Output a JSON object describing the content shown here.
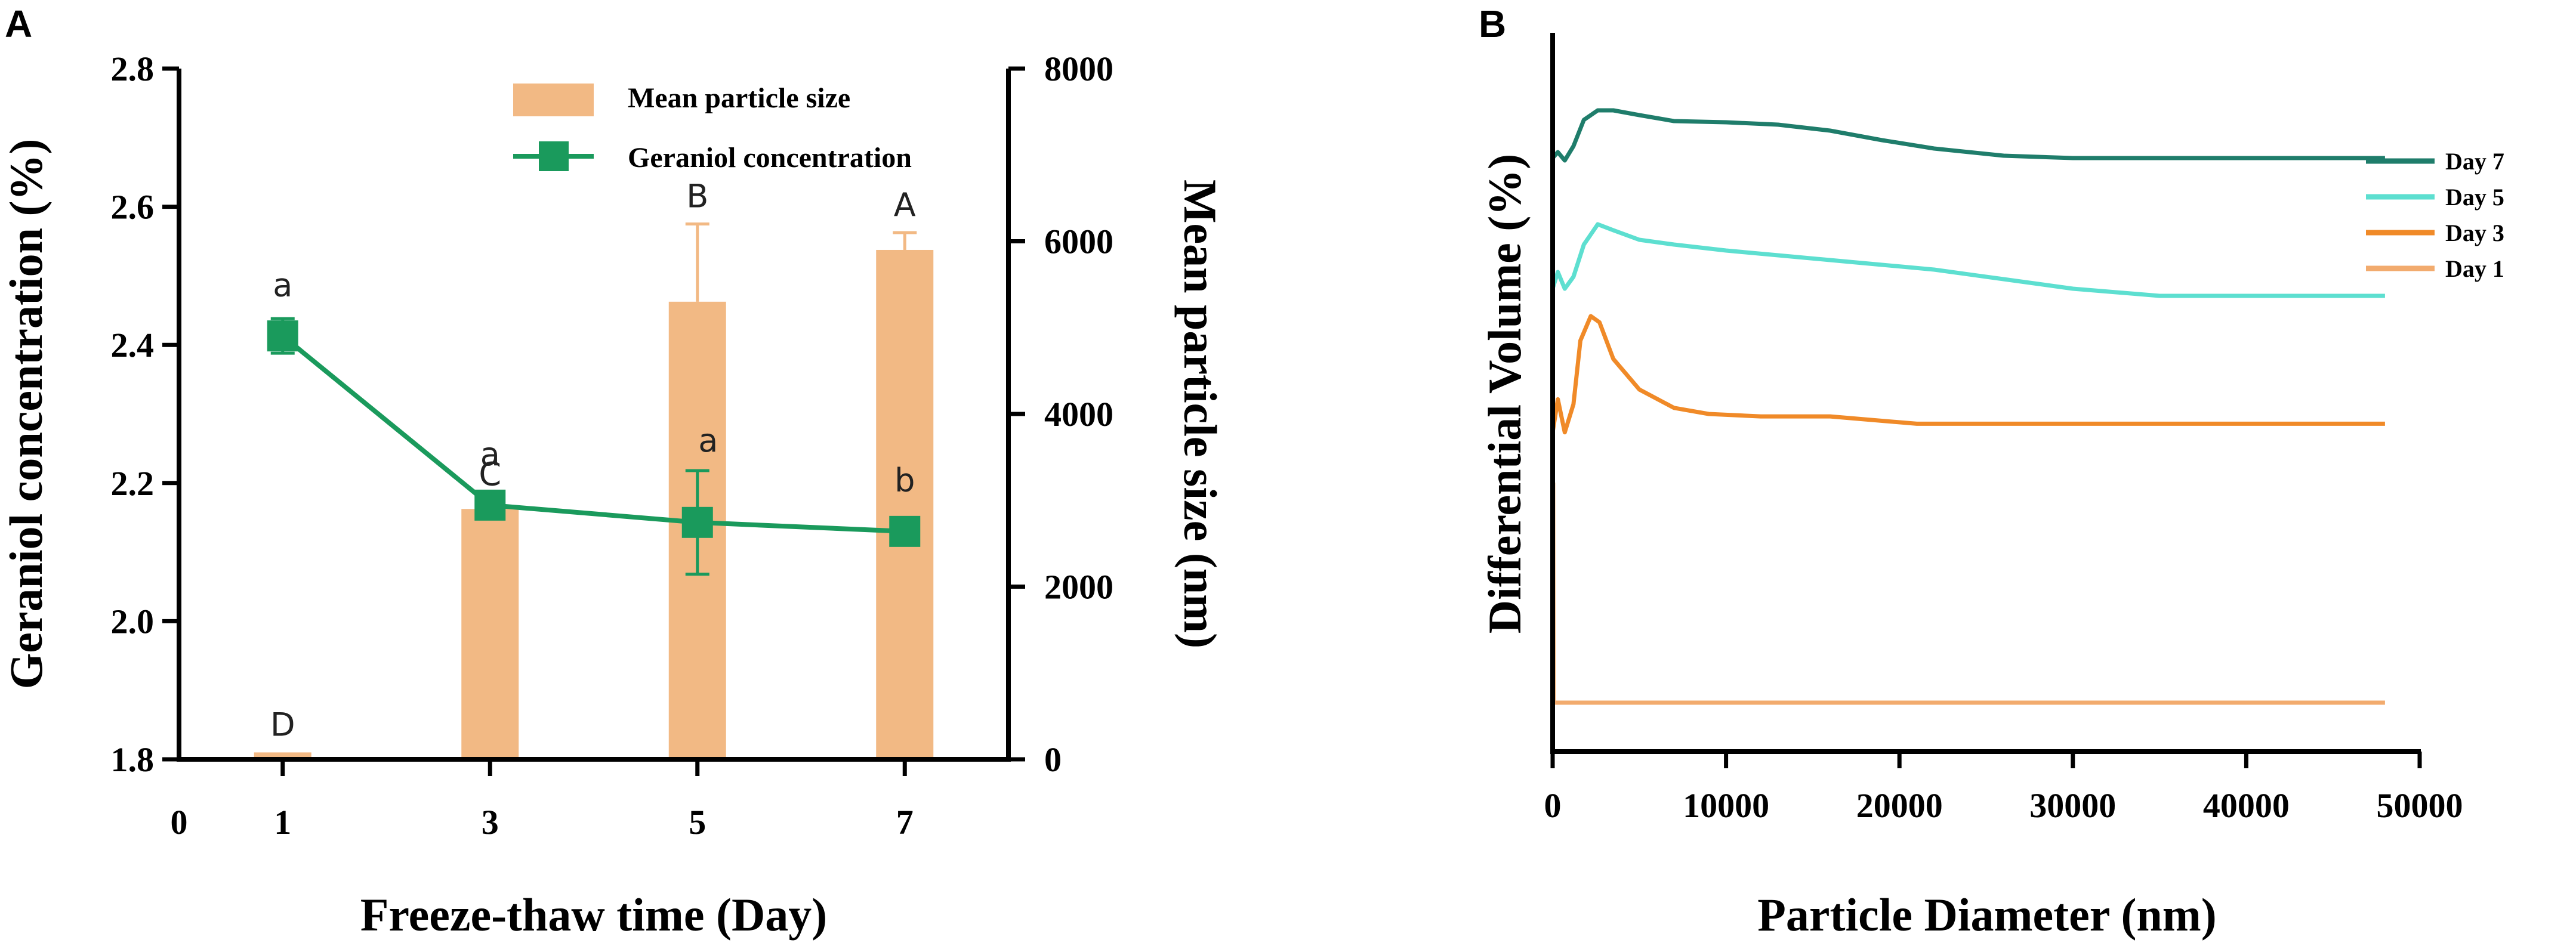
{
  "panels": {
    "a": "A",
    "b": "B"
  },
  "chart_data": [
    {
      "type": "bar",
      "panel": "A",
      "xlabel": "Freeze-thaw time (Day)",
      "ylabel_left": "Geraniol concentration (%)",
      "ylabel_right": "Mean particle size (nm)",
      "x_ticks": [
        "0",
        "1",
        "3",
        "5",
        "7"
      ],
      "x_range": [
        0,
        8
      ],
      "y_left_ticks": [
        "1.8",
        "2.0",
        "2.2",
        "2.4",
        "2.6",
        "2.8"
      ],
      "y_left_range": [
        1.8,
        2.8
      ],
      "y_right_ticks": [
        "0",
        "2000",
        "4000",
        "6000",
        "8000"
      ],
      "y_right_range": [
        0,
        8000
      ],
      "categories": [
        "1",
        "3",
        "5",
        "7"
      ],
      "series": [
        {
          "name": "Mean particle size",
          "kind": "bar",
          "axis": "right",
          "color": "#f2b984",
          "x": [
            1,
            3,
            5,
            7
          ],
          "values": [
            80,
            2900,
            5300,
            5900
          ],
          "error": [
            0,
            80,
            900,
            200
          ],
          "letters": [
            "D",
            "C",
            "B",
            "A"
          ]
        },
        {
          "name": "Geraniol concentration",
          "kind": "line",
          "axis": "left",
          "color": "#1a9a5c",
          "x": [
            1,
            3,
            5,
            7
          ],
          "values": [
            2.413,
            2.168,
            2.143,
            2.13
          ],
          "error": [
            0.025,
            0.008,
            0.075,
            0.005
          ],
          "letters": [
            "a",
            "a",
            "a",
            "b"
          ]
        }
      ],
      "legend": [
        "Mean particle size",
        "Geraniol concentration"
      ],
      "legend_position": "top-right"
    },
    {
      "type": "line",
      "panel": "B",
      "xlabel": "Particle Diameter (nm)",
      "ylabel": "Differential Volume (%)",
      "x_ticks": [
        "0",
        "10000",
        "20000",
        "30000",
        "40000",
        "50000"
      ],
      "x_range": [
        0,
        50000
      ],
      "legend_position": "right",
      "legend": [
        "Day 7",
        "Day 5",
        "Day 3",
        "Day 1"
      ],
      "series": [
        {
          "name": "Day 7",
          "color": "#1f7d6b",
          "x": [
            0,
            300,
            700,
            1200,
            1800,
            2600,
            3500,
            5000,
            7000,
            10000,
            13000,
            16000,
            19000,
            22000,
            26000,
            30000,
            35000,
            40000,
            48000
          ],
          "y": [
            0.3,
            0.35,
            0.28,
            0.4,
            0.62,
            0.7,
            0.7,
            0.66,
            0.61,
            0.6,
            0.58,
            0.53,
            0.45,
            0.38,
            0.32,
            0.3,
            0.3,
            0.3,
            0.3
          ]
        },
        {
          "name": "Day 5",
          "color": "#5ddfd0",
          "x": [
            0,
            300,
            700,
            1200,
            1800,
            2600,
            3500,
            5000,
            7000,
            10000,
            13000,
            16000,
            19000,
            22000,
            26000,
            30000,
            35000,
            40000,
            48000
          ],
          "y": [
            0.08,
            0.22,
            0.08,
            0.18,
            0.45,
            0.62,
            0.57,
            0.49,
            0.45,
            0.4,
            0.36,
            0.32,
            0.28,
            0.24,
            0.16,
            0.08,
            0.02,
            0.02,
            0.02
          ]
        },
        {
          "name": "Day 3",
          "color": "#f08a28",
          "x": [
            0,
            300,
            700,
            1200,
            1600,
            2200,
            2700,
            3500,
            5000,
            7000,
            9000,
            12000,
            16000,
            21000,
            30000,
            40000,
            48000
          ],
          "y": [
            0.05,
            0.32,
            0.05,
            0.28,
            0.8,
            1.0,
            0.95,
            0.65,
            0.4,
            0.25,
            0.2,
            0.18,
            0.18,
            0.12,
            0.12,
            0.12,
            0.12
          ]
        },
        {
          "name": "Day 1",
          "color": "#f2ab6e",
          "x": [
            0,
            30,
            60,
            300,
            48000
          ],
          "y": [
            0,
            0.92,
            0,
            0,
            0
          ]
        }
      ]
    }
  ]
}
